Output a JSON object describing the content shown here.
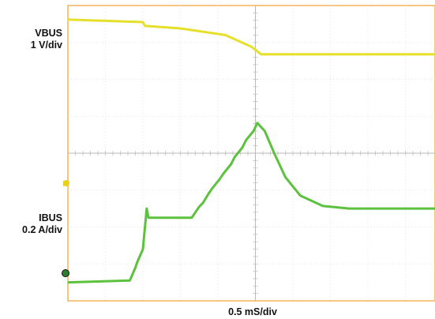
{
  "chart_data": {
    "type": "line",
    "channels": [
      {
        "label": "VBUS",
        "scale": "1 V/div",
        "color": "#e6e02a"
      },
      {
        "label": "IBUS",
        "scale": "0.2 A/div",
        "color": "#5cc23e"
      }
    ],
    "x_scale": "0.5 mS/div",
    "x_divisions": [
      0,
      10
    ],
    "y_divisions": [
      0,
      8
    ],
    "grid": true,
    "frame_color": "#f3b25c",
    "series": [
      {
        "name": "VBUS",
        "x": [
          0,
          2.0,
          2.05,
          3.0,
          4.2,
          4.9,
          5.15,
          10
        ],
        "y": [
          7.62,
          7.55,
          7.45,
          7.38,
          7.2,
          6.88,
          6.68,
          6.68
        ]
      },
      {
        "name": "IBUS",
        "x": [
          0,
          1.65,
          1.8,
          1.85,
          2.0,
          2.1,
          2.15,
          3.1,
          3.3,
          3.5,
          3.6,
          3.75,
          3.85,
          4.05,
          4.15,
          4.35,
          4.45,
          4.65,
          4.75,
          4.95,
          5.05,
          5.25,
          5.5,
          5.8,
          6.2,
          6.8,
          7.5,
          8.5,
          10
        ],
        "y": [
          0.5,
          0.55,
          0.9,
          1.05,
          1.4,
          2.5,
          2.25,
          2.25,
          2.25,
          2.55,
          2.65,
          2.9,
          3.05,
          3.3,
          3.45,
          3.7,
          3.9,
          4.15,
          4.35,
          4.6,
          4.82,
          4.6,
          4.0,
          3.35,
          2.85,
          2.57,
          2.5,
          2.5,
          2.5
        ]
      }
    ]
  }
}
